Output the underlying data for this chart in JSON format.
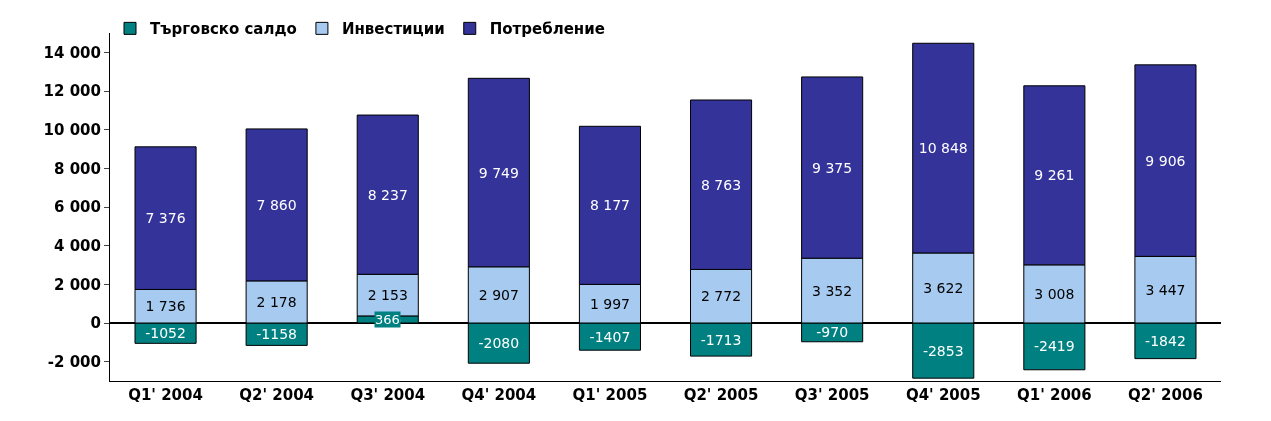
{
  "chart_data": {
    "type": "bar",
    "stacked": true,
    "legend": "top left",
    "categories": [
      "Q1' 2004",
      "Q2' 2004",
      "Q3' 2004",
      "Q4' 2004",
      "Q1' 2005",
      "Q2' 2005",
      "Q3' 2005",
      "Q4' 2005",
      "Q1' 2006",
      "Q2' 2006"
    ],
    "series": [
      {
        "name": "Търговско салдо",
        "color": "#008080",
        "values": [
          -1052,
          -1158,
          366,
          -2080,
          -1407,
          -1713,
          -970,
          -2853,
          -2419,
          -1842
        ],
        "value_labels": [
          "-1052",
          "-1158",
          "366",
          "-2080",
          "-1407",
          "-1713",
          "-970",
          "-2853",
          "-2419",
          "-1842"
        ]
      },
      {
        "name": "Инвестиции",
        "color": "#a6caf0",
        "values": [
          1736,
          2178,
          2153,
          2907,
          1997,
          2772,
          3352,
          3622,
          3008,
          3447
        ],
        "value_labels": [
          "1 736",
          "2 178",
          "2 153",
          "2 907",
          "1 997",
          "2 772",
          "3 352",
          "3 622",
          "3 008",
          "3 447"
        ]
      },
      {
        "name": "Потребление",
        "color": "#333399",
        "values": [
          7376,
          7860,
          8237,
          9749,
          8177,
          8763,
          9375,
          10848,
          9261,
          9906
        ],
        "value_labels": [
          "7 376",
          "7 860",
          "8 237",
          "9 749",
          "8 177",
          "8 763",
          "9 375",
          "10 848",
          "9 261",
          "9 906"
        ]
      }
    ],
    "ylim": [
      -3000,
      15000
    ],
    "yticks": [
      {
        "value": -2000,
        "label": "-2 000"
      },
      0,
      {
        "value": 2000,
        "label": "2 000"
      },
      {
        "value": 4000,
        "label": "4 000"
      },
      {
        "value": 6000,
        "label": "6 000"
      },
      {
        "value": 8000,
        "label": "8 000"
      },
      {
        "value": 10000,
        "label": "10 000"
      },
      {
        "value": 12000,
        "label": "12 000"
      },
      {
        "value": 14000,
        "label": "14 000"
      }
    ]
  }
}
